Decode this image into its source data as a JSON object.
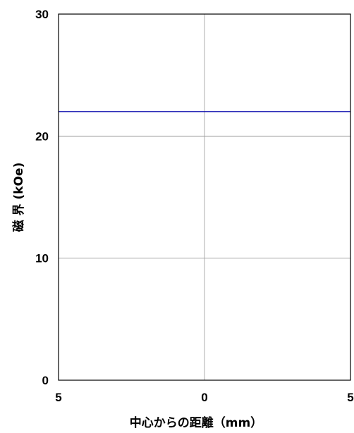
{
  "chart_data": {
    "type": "line",
    "xlabel": "中心からの距離（mm）",
    "ylabel": "磁 界 (kOe)",
    "x_tick_labels": [
      "5",
      "0",
      "5"
    ],
    "x_tick_values": [
      -5,
      0,
      5
    ],
    "y_tick_labels": [
      "0",
      "10",
      "20",
      "30"
    ],
    "y_tick_values": [
      0,
      10,
      20,
      30
    ],
    "xlim": [
      -5,
      5
    ],
    "ylim": [
      0,
      30
    ],
    "grid": true,
    "series": [
      {
        "x": [
          -5,
          5
        ],
        "y": [
          22,
          22
        ],
        "color": "#0000aa"
      }
    ]
  }
}
